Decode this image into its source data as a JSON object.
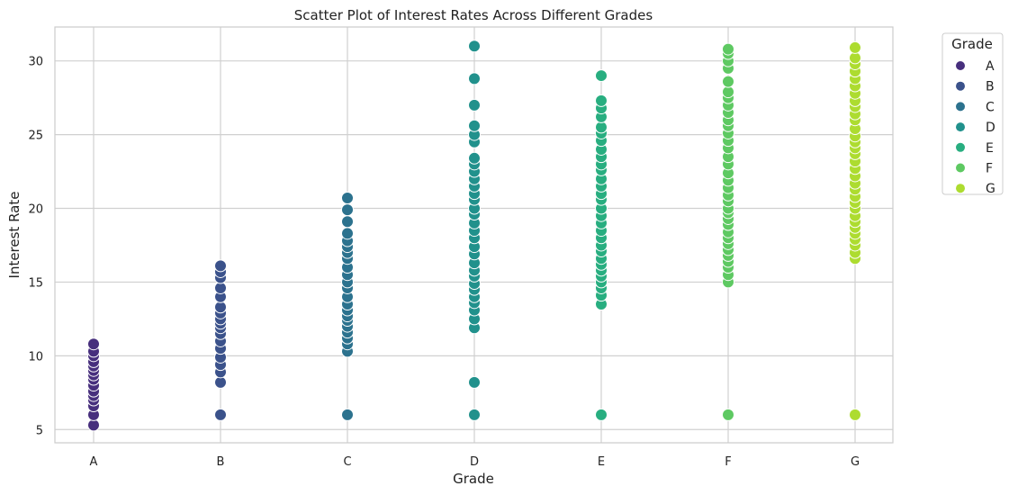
{
  "chart_data": {
    "type": "scatter",
    "title": "Scatter Plot of Interest Rates Across Different Grades",
    "xlabel": "Grade",
    "ylabel": "Interest Rate",
    "categories": [
      "A",
      "B",
      "C",
      "D",
      "E",
      "F",
      "G"
    ],
    "y_ticks": [
      5,
      10,
      15,
      20,
      25,
      30
    ],
    "ylim": [
      4.1,
      32.3
    ],
    "grid": true,
    "legend": {
      "title": "Grade",
      "placement": "outside-top-right",
      "entries": [
        "A",
        "B",
        "C",
        "D",
        "E",
        "F",
        "G"
      ]
    },
    "colors": {
      "A": "#472f7d",
      "B": "#3b528b",
      "C": "#2c728e",
      "D": "#21918c",
      "E": "#28ae80",
      "F": "#5ec962",
      "G": "#addc30"
    },
    "series": [
      {
        "name": "A",
        "x": "A",
        "values": [
          5.3,
          6.0,
          6.6,
          7.0,
          7.3,
          7.6,
          8.0,
          8.4,
          8.7,
          9.0,
          9.3,
          9.6,
          10.0,
          10.3,
          10.8
        ]
      },
      {
        "name": "B",
        "x": "B",
        "values": [
          6.0,
          8.2,
          8.9,
          9.4,
          9.9,
          10.5,
          11.0,
          11.5,
          11.9,
          12.2,
          12.5,
          12.9,
          13.3,
          14.0,
          14.6,
          15.3,
          15.7,
          16.1
        ]
      },
      {
        "name": "C",
        "x": "C",
        "values": [
          6.0,
          10.3,
          10.8,
          11.2,
          11.6,
          12.0,
          12.4,
          12.7,
          13.1,
          13.5,
          14.0,
          14.6,
          15.0,
          15.5,
          16.0,
          16.6,
          17.0,
          17.4,
          17.8,
          18.3,
          19.1,
          19.9,
          20.7
        ]
      },
      {
        "name": "D",
        "x": "D",
        "values": [
          6.0,
          8.2,
          11.9,
          12.5,
          13.1,
          13.6,
          14.0,
          14.5,
          14.9,
          15.4,
          15.8,
          16.3,
          16.9,
          17.4,
          18.0,
          18.5,
          19.0,
          19.6,
          20.0,
          20.6,
          21.0,
          21.5,
          22.0,
          22.5,
          23.0,
          23.4,
          24.5,
          25.0,
          25.6,
          27.0,
          28.8,
          31.0
        ]
      },
      {
        "name": "E",
        "x": "E",
        "values": [
          6.0,
          13.5,
          14.1,
          14.6,
          15.0,
          15.4,
          15.8,
          16.2,
          16.6,
          17.1,
          17.5,
          18.0,
          18.5,
          19.0,
          19.5,
          20.0,
          20.6,
          21.0,
          21.5,
          22.0,
          22.6,
          23.0,
          23.5,
          24.0,
          24.6,
          25.1,
          25.5,
          26.2,
          26.8,
          27.3,
          29.0
        ]
      },
      {
        "name": "F",
        "x": "F",
        "values": [
          6.0,
          15.0,
          15.5,
          16.0,
          16.4,
          16.8,
          17.2,
          17.6,
          18.0,
          18.4,
          18.9,
          19.3,
          19.7,
          20.0,
          20.5,
          20.9,
          21.4,
          21.9,
          22.4,
          23.0,
          23.5,
          24.1,
          24.6,
          25.1,
          25.6,
          26.0,
          26.5,
          27.0,
          27.5,
          27.9,
          28.6,
          29.5,
          30.0,
          30.5,
          30.8
        ]
      },
      {
        "name": "G",
        "x": "G",
        "values": [
          6.0,
          16.6,
          17.0,
          17.5,
          17.9,
          18.3,
          18.7,
          19.1,
          19.5,
          20.0,
          20.4,
          20.8,
          21.3,
          21.7,
          22.2,
          22.7,
          23.2,
          23.7,
          24.1,
          24.5,
          24.9,
          25.4,
          26.0,
          26.4,
          26.9,
          27.3,
          27.8,
          28.3,
          28.8,
          29.3,
          29.8,
          30.2,
          30.9
        ]
      }
    ]
  }
}
